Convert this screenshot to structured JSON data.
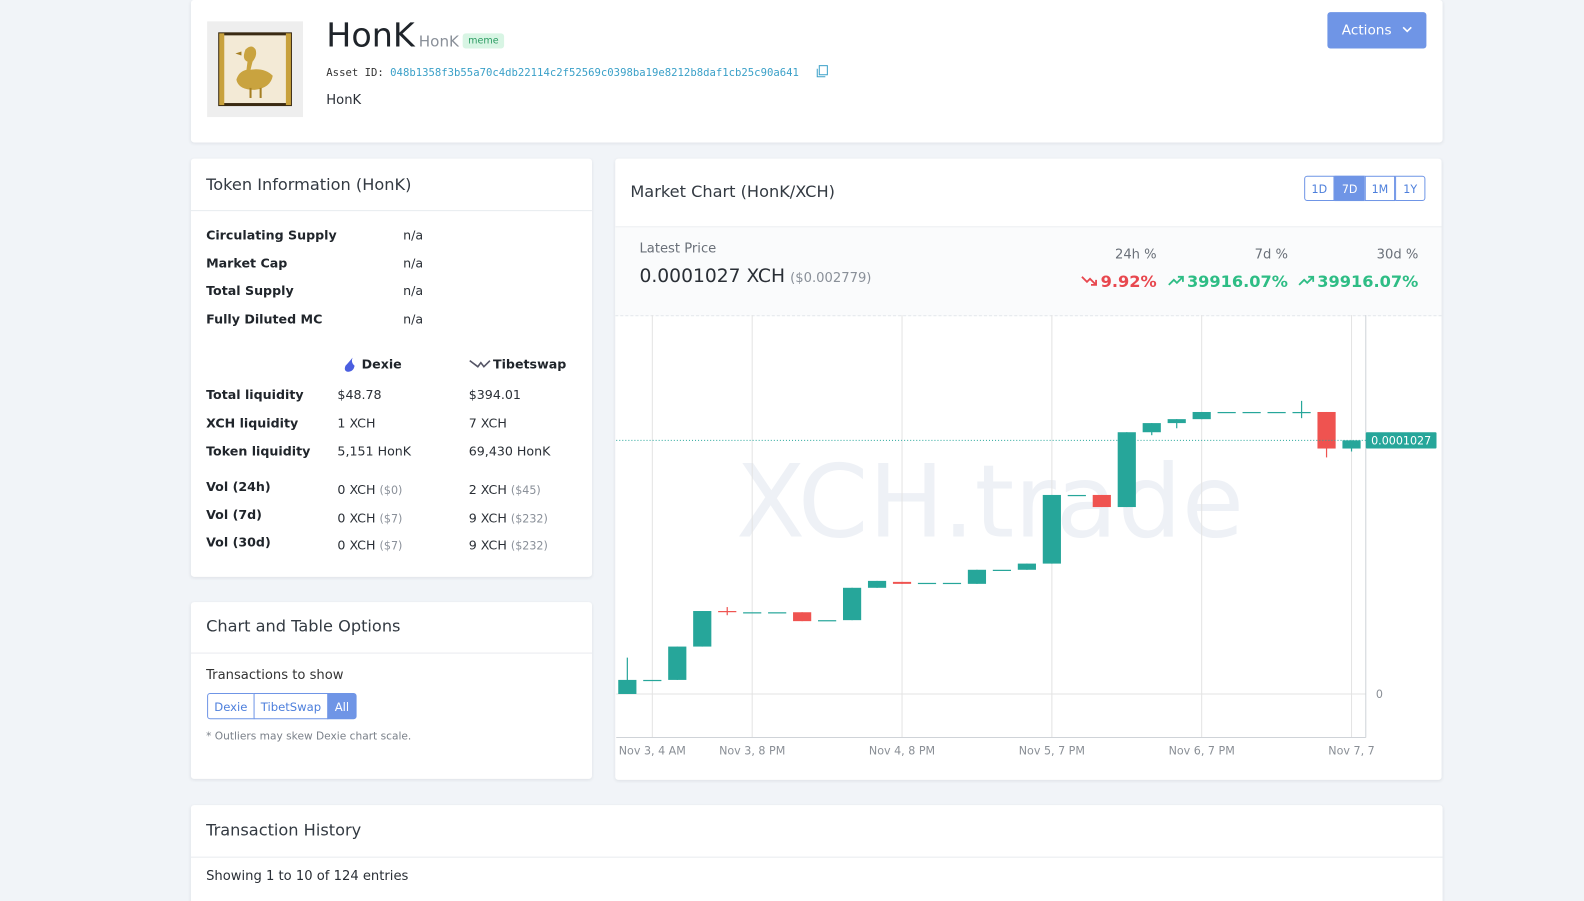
{
  "header": {
    "title": "HonK",
    "code": "HonK",
    "tag": "meme",
    "asset_id_label": "Asset ID:",
    "asset_id": "048b1358f3b55a70c4db22114c2f52569c0398ba19e8212b8daf1cb25c90a641",
    "description": "HonK",
    "actions": "Actions"
  },
  "token_info": {
    "title": "Token Information (HonK)",
    "rows": [
      [
        "Circulating Supply",
        "n/a"
      ],
      [
        "Market Cap",
        "n/a"
      ],
      [
        "Total Supply",
        "n/a"
      ],
      [
        "Fully Diluted MC",
        "n/a"
      ]
    ],
    "exchanges": [
      "Dexie",
      "Tibetswap"
    ],
    "liquidity_rows": [
      [
        "Total liquidity",
        "$48.78",
        "$394.01"
      ],
      [
        "XCH liquidity",
        "1 XCH",
        "7 XCH"
      ],
      [
        "Token liquidity",
        "5,151 HonK",
        "69,430 HonK"
      ]
    ],
    "volume_rows": [
      [
        "Vol (24h)",
        "0 XCH",
        "($0)",
        "2 XCH",
        "($45)"
      ],
      [
        "Vol (7d)",
        "0 XCH",
        "($7)",
        "9 XCH",
        "($232)"
      ],
      [
        "Vol (30d)",
        "0 XCH",
        "($7)",
        "9 XCH",
        "($232)"
      ]
    ]
  },
  "options": {
    "title": "Chart and Table Options",
    "label": "Transactions to show",
    "buttons": [
      "Dexie",
      "TibetSwap",
      "All"
    ],
    "active": 2,
    "note": "* Outliers may skew Dexie chart scale."
  },
  "market": {
    "title": "Market Chart (HonK/XCH)",
    "ranges": [
      "1D",
      "7D",
      "1M",
      "1Y"
    ],
    "active_range": 1,
    "latest_label": "Latest Price",
    "latest_price": "0.0001027 XCH",
    "latest_usd": "($0.002779)",
    "stats": [
      {
        "label": "24h %",
        "value": "9.92%",
        "direction": "down"
      },
      {
        "label": "7d %",
        "value": "39916.07%",
        "direction": "up"
      },
      {
        "label": "30d %",
        "value": "39916.07%",
        "direction": "up"
      }
    ]
  },
  "chart_data": {
    "type": "candlestick",
    "categories": [
      null,
      "Nov 3, 4 AM",
      null,
      null,
      null,
      "Nov 3, 8 PM",
      null,
      null,
      null,
      null,
      null,
      "Nov 4, 8 PM",
      null,
      null,
      null,
      null,
      null,
      "Nov 5, 7 PM",
      null,
      null,
      null,
      null,
      null,
      "Nov 6, 7 PM",
      null,
      null,
      null,
      null,
      null,
      "Nov 7, 7"
    ],
    "open": [
      0,
      5.7e-06,
      5.7e-06,
      1.92e-05,
      3.36e-05,
      3.31e-05,
      3.31e-05,
      3.31e-05,
      2.99e-05,
      2.99e-05,
      4.3e-05,
      4.54e-05,
      4.5e-05,
      4.5e-05,
      4.46e-05,
      5.03e-05,
      5.03e-05,
      5.28e-05,
      8.06e-05,
      8.06e-05,
      7.57e-05,
      0.000106,
      0.0001097,
      0.0001113,
      0.0001142,
      0.0001142,
      0.0001142,
      0.0001142,
      0.0001142,
      9.94e-05
    ],
    "high": [
      1.47e-05,
      5.7e-06,
      1.92e-05,
      3.36e-05,
      3.52e-05,
      3.31e-05,
      3.31e-05,
      3.31e-05,
      2.99e-05,
      4.3e-05,
      4.58e-05,
      4.54e-05,
      4.5e-05,
      4.5e-05,
      5.03e-05,
      5.03e-05,
      5.28e-05,
      8.06e-05,
      8.06e-05,
      8.06e-05,
      0.000106,
      0.0001097,
      0.0001113,
      0.0001142,
      0.0001142,
      0.0001142,
      0.0001142,
      0.0001187,
      0.0001142,
      0.0001027
    ],
    "low": [
      0,
      5.7e-06,
      5.7e-06,
      1.92e-05,
      3.19e-05,
      3.31e-05,
      3.31e-05,
      2.95e-05,
      2.99e-05,
      2.99e-05,
      4.3e-05,
      4.46e-05,
      4.5e-05,
      4.5e-05,
      4.46e-05,
      5.03e-05,
      5.03e-05,
      5.28e-05,
      8.06e-05,
      7.57e-05,
      7.57e-05,
      0.0001048,
      0.0001076,
      0.0001113,
      0.0001142,
      0.0001142,
      0.0001142,
      0.0001117,
      9.58e-05,
      9.82e-05
    ],
    "close": [
      5.7e-06,
      5.7e-06,
      1.92e-05,
      3.36e-05,
      3.32e-05,
      3.31e-05,
      3.31e-05,
      2.95e-05,
      2.99e-05,
      4.3e-05,
      4.58e-05,
      4.46e-05,
      4.5e-05,
      4.5e-05,
      5.03e-05,
      5.03e-05,
      5.28e-05,
      8.06e-05,
      8.06e-05,
      7.57e-05,
      0.000106,
      0.0001097,
      0.0001113,
      0.0001142,
      0.0001142,
      0.0001142,
      0.0001142,
      0.0001142,
      9.94e-05,
      0.0001027
    ],
    "up_color": "#26a69a",
    "down_color": "#ef5350",
    "ylim": [
      -1.76e-05,
      0.0001534
    ],
    "yticks": [
      0
    ],
    "last_price": 0.0001027,
    "watermark": "XCH.trade",
    "grid": true
  },
  "history": {
    "title": "Transaction History",
    "info": "Showing 1 to 10 of 124 entries"
  }
}
